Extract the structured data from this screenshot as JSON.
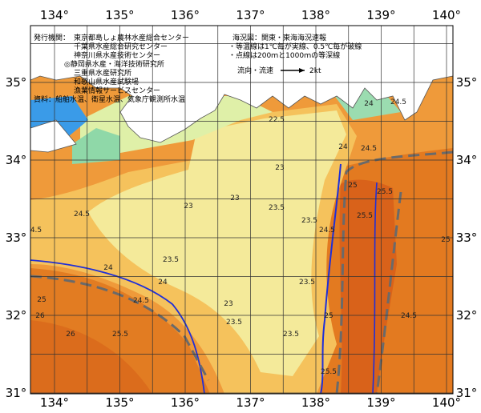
{
  "map": {
    "lon_labels": [
      "134°",
      "135°",
      "136°",
      "137°",
      "138°",
      "139°",
      "140°"
    ],
    "lat_labels": [
      "35°",
      "34°",
      "33°",
      "32°",
      "31°"
    ],
    "publisher": {
      "label": "発行機関：",
      "orgs": [
        "東京都島しょ農林水産総合センター",
        "千葉県水産総合研究センター",
        "神奈川県水産技術センター",
        "◎静岡県水産・海洋技術研究所",
        "三重県水産研究所",
        "和歌山県水産試験場",
        "漁業情報サービスセンター"
      ]
    },
    "source": "資料：船舶水温、衛星水温、気象庁観測所水温",
    "legend": {
      "title": "海況図：関東・東海海況速報",
      "notes": [
        "・等温線は1℃毎が実線、0.5℃毎が破線",
        "・点線は200ｍと1000ｍの等深線"
      ],
      "current": "流向・流速",
      "speed": "2kt"
    },
    "contour_labels": [
      "22.5",
      "23",
      "23",
      "23",
      "23.5",
      "23.5",
      "24",
      "24.5",
      "24.5",
      "25",
      "25.5",
      "25.5",
      "4.5",
      "24.5",
      "24",
      "23.5",
      "24",
      "24.5",
      "23",
      "23.5",
      "23.5",
      "23.5",
      "25",
      "25",
      "26",
      "26",
      "25.5",
      "25.5",
      "24.5",
      "24",
      "24.5",
      "25"
    ]
  }
}
